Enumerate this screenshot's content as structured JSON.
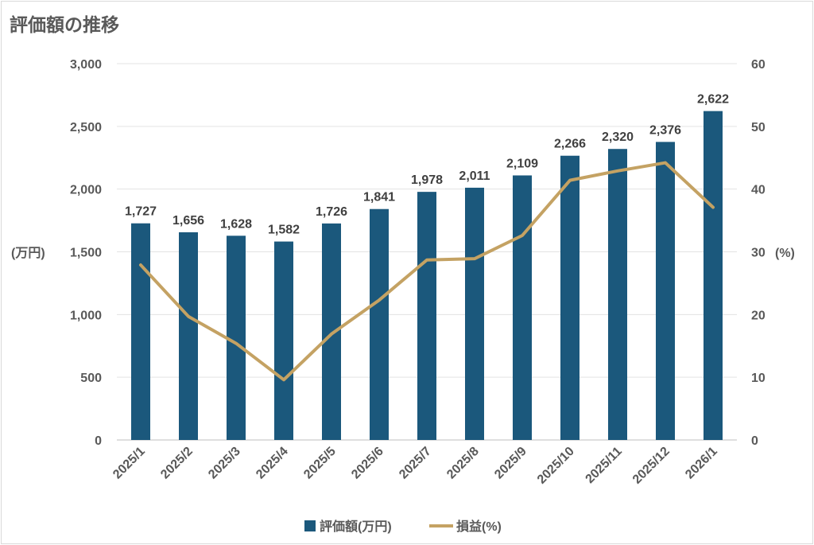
{
  "chart_data": {
    "type": "bar+line",
    "title": "評価額の推移",
    "categories": [
      "2025/1",
      "2025/2",
      "2025/3",
      "2025/4",
      "2025/5",
      "2025/6",
      "2025/7",
      "2025/8",
      "2025/9",
      "2025/10",
      "2025/11",
      "2025/12",
      "2026/1"
    ],
    "series": [
      {
        "name": "評価額(万円)",
        "type": "bar",
        "axis": "left",
        "color": "#1b587c",
        "values": [
          1727,
          1656,
          1628,
          1582,
          1726,
          1841,
          1978,
          2011,
          2109,
          2266,
          2320,
          2376,
          2622
        ],
        "labels": [
          "1,727",
          "1,656",
          "1,628",
          "1,582",
          "1,726",
          "1,841",
          "1,978",
          "2,011",
          "2,109",
          "2,266",
          "2,320",
          "2,376",
          "2,622"
        ]
      },
      {
        "name": "損益(%)",
        "type": "line",
        "axis": "right",
        "color": "#c4a263",
        "values": [
          27.9,
          19.7,
          15.4,
          9.6,
          16.9,
          22.3,
          28.7,
          28.9,
          32.6,
          41.4,
          42.9,
          44.2,
          37.1
        ]
      }
    ],
    "ylabel": "(万円)",
    "y2label": "(%)",
    "ylim": [
      0,
      3000
    ],
    "y2lim": [
      0,
      60
    ],
    "yticks": [
      "0",
      "500",
      "1,000",
      "1,500",
      "2,000",
      "2,500",
      "3,000"
    ],
    "y2ticks": [
      "0",
      "10",
      "20",
      "30",
      "40",
      "50",
      "60"
    ],
    "grid": true,
    "legend": "bottom"
  }
}
